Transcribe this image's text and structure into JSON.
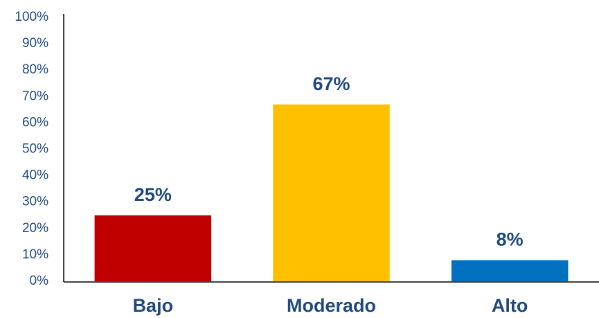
{
  "chart_data": {
    "type": "bar",
    "categories": [
      "Bajo",
      "Moderado",
      "Alto"
    ],
    "values": [
      25,
      67,
      8
    ],
    "value_labels": [
      "25%",
      "67%",
      "8%"
    ],
    "colors": [
      "#c00000",
      "#ffc000",
      "#0070c0"
    ],
    "ylim": [
      0,
      100
    ],
    "yticks": [
      {
        "value": 0,
        "label": "0%"
      },
      {
        "value": 10,
        "label": "10%"
      },
      {
        "value": 20,
        "label": "20%"
      },
      {
        "value": 30,
        "label": "30%"
      },
      {
        "value": 40,
        "label": "40%"
      },
      {
        "value": 50,
        "label": "50%"
      },
      {
        "value": 60,
        "label": "60%"
      },
      {
        "value": 70,
        "label": "70%"
      },
      {
        "value": 80,
        "label": "80%"
      },
      {
        "value": 90,
        "label": "90%"
      },
      {
        "value": 100,
        "label": "100%"
      }
    ],
    "grid": false
  }
}
